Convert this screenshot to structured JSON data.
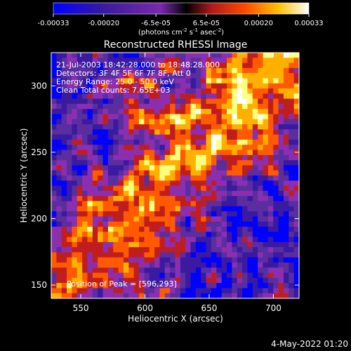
{
  "chart_data": {
    "type": "heatmap",
    "title": "Reconstructed RHESSI Image",
    "xlabel": "Heliocentric X (arcsec)",
    "ylabel": "Heliocentric Y (arcsec)",
    "xlim": [
      527,
      720
    ],
    "ylim": [
      140,
      325
    ],
    "x_ticks": [
      550,
      600,
      650,
      700
    ],
    "y_ticks": [
      150,
      200,
      250,
      300
    ],
    "colorbar": {
      "range": [
        -0.00033,
        0.00033
      ],
      "tick_values": [
        -0.00033,
        -0.0002,
        -6.5e-05,
        6.5e-05,
        0.0002,
        0.00033
      ],
      "tick_labels": [
        "-0.00033",
        "-0.00020",
        "-6.5e-05",
        "6.5e-05",
        "0.00020",
        "0.00033"
      ],
      "unit_label": {
        "prefix": "(photons cm",
        "exp1": "-2",
        "mid1": " s",
        "exp2": "-1",
        "mid2": " asec",
        "exp3": "-2",
        "suffix": ")"
      }
    },
    "annotations": {
      "time_range": "21-Jul-2003 18:42:28.000 to 18:48:28.000",
      "detectors": "Detectors: 3F 4F 5F 6F 7F 8F, Att 0",
      "energy": "Energy Range: 25.0 - 50.0 keV",
      "clean": "Clean    Total counts: 7.65E+03",
      "peak": "Position of Peak = [596,293]"
    },
    "peak": {
      "x": 596,
      "y": 293
    },
    "grid": false,
    "legend": "none",
    "colormap": [
      "#0000ff",
      "#3a1aa0",
      "#5a2ea0",
      "#8b2fb0",
      "#c01e1e",
      "#ff5a00",
      "#ffb000",
      "#ffff80",
      "#ffffff"
    ]
  },
  "footer": {
    "timestamp": "4-May-2022 01:20"
  }
}
